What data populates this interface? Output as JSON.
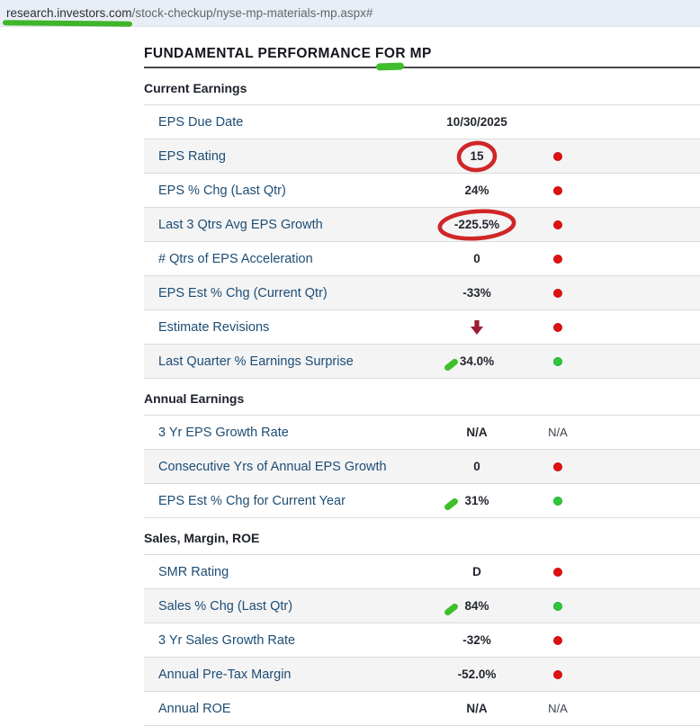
{
  "url_bar": {
    "domain": "research.investors.com",
    "path": "/stock-checkup/nyse-mp-materials-mp.aspx#"
  },
  "page": {
    "title": "FUNDAMENTAL PERFORMANCE FOR MP"
  },
  "na_status_label": "N/A",
  "colors": {
    "dot_red": "#e01111",
    "dot_green": "#2ec93a",
    "pen_green": "#3fc029",
    "pen_red": "#d02627",
    "arrow_maroon": "#9c1b31",
    "label_blue": "#1d4d74",
    "row_alt_bg": "#f4f4f5",
    "url_bar_bg": "#e9eef6"
  },
  "sections": [
    {
      "heading": "Current Earnings",
      "rows": [
        {
          "label": "EPS Due Date",
          "value": "10/30/2025",
          "status": "none",
          "annotation": null
        },
        {
          "label": "EPS Rating",
          "value": "15",
          "status": "red",
          "annotation": "red_circle"
        },
        {
          "label": "EPS % Chg (Last Qtr)",
          "value": "24%",
          "status": "red",
          "annotation": null
        },
        {
          "label": "Last 3 Qtrs Avg EPS Growth",
          "value": "-225.5%",
          "status": "red",
          "annotation": "red_circle"
        },
        {
          "label": "# Qtrs of EPS Acceleration",
          "value": "0",
          "status": "red",
          "annotation": null
        },
        {
          "label": "EPS Est % Chg (Current Qtr)",
          "value": "-33%",
          "status": "red",
          "annotation": null
        },
        {
          "label": "Estimate Revisions",
          "value": "",
          "value_icon": "down_arrow",
          "status": "red",
          "annotation": null
        },
        {
          "label": "Last Quarter % Earnings Surprise",
          "value": "34.0%",
          "status": "green",
          "annotation": "green_tick"
        }
      ]
    },
    {
      "heading": "Annual Earnings",
      "rows": [
        {
          "label": "3 Yr EPS Growth Rate",
          "value": "N/A",
          "status": "na",
          "annotation": null
        },
        {
          "label": "Consecutive Yrs of Annual EPS Growth",
          "value": "0",
          "status": "red",
          "annotation": null
        },
        {
          "label": "EPS Est % Chg for Current Year",
          "value": "31%",
          "status": "green",
          "annotation": "green_tick"
        }
      ]
    },
    {
      "heading": "Sales, Margin, ROE",
      "rows": [
        {
          "label": "SMR Rating",
          "value": "D",
          "status": "red",
          "annotation": null
        },
        {
          "label": "Sales % Chg (Last Qtr)",
          "value": "84%",
          "status": "green",
          "annotation": "green_tick"
        },
        {
          "label": "3 Yr Sales Growth Rate",
          "value": "-32%",
          "status": "red",
          "annotation": null
        },
        {
          "label": "Annual Pre-Tax Margin",
          "value": "-52.0%",
          "status": "red",
          "annotation": null
        },
        {
          "label": "Annual ROE",
          "value": "N/A",
          "status": "na",
          "annotation": null
        }
      ]
    }
  ]
}
